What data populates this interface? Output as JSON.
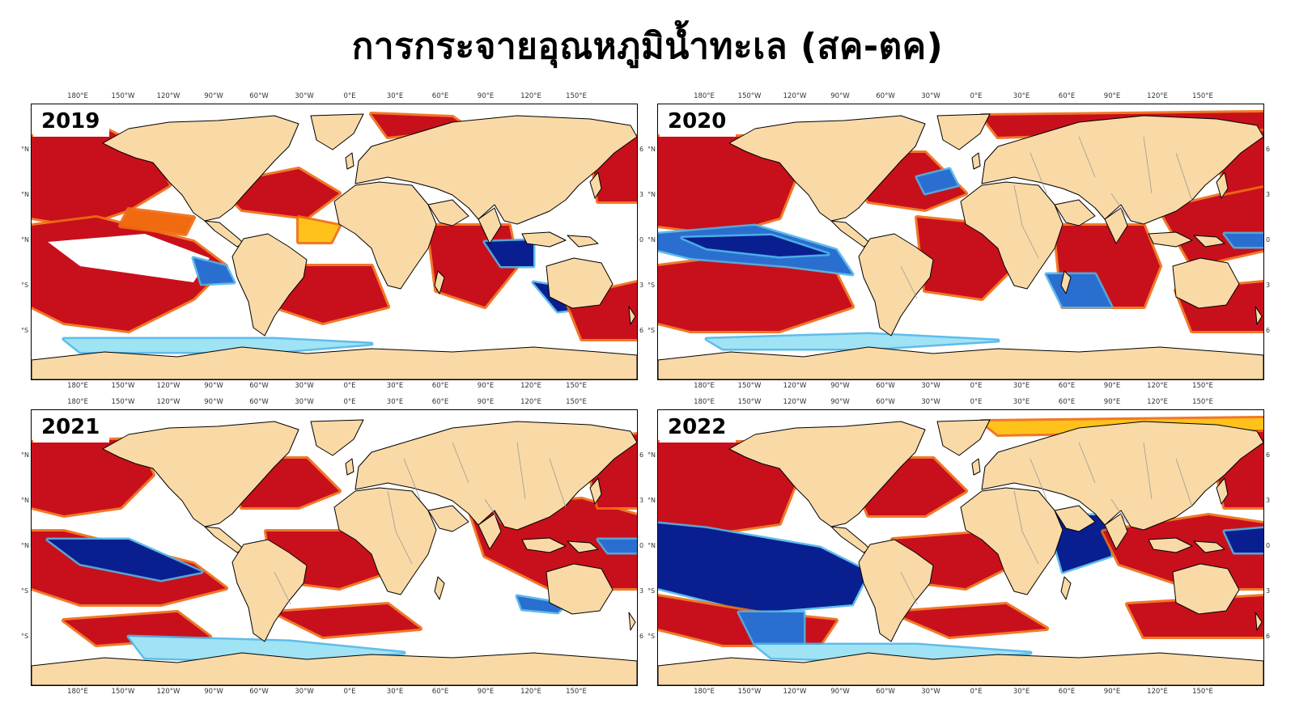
{
  "title": "การกระจายอุณหภูมิน้ำทะเล (สค-ตค)",
  "lon_labels": [
    "180°E",
    "150°W",
    "120°W",
    "90°W",
    "60°W",
    "30°W",
    "0°E",
    "30°E",
    "60°E",
    "90°E",
    "120°E",
    "150°E"
  ],
  "lat_labels_left": [
    "°N",
    "°N",
    "°N",
    "°S",
    "°S"
  ],
  "lat_labels_right": [
    "6",
    "3",
    "0",
    "3",
    "6"
  ],
  "colors": {
    "land": "#F9D9A6",
    "coast": "#000000",
    "border": "#9a9a9a",
    "warm_strong": "#C8101C",
    "warm_mid": "#F06A10",
    "warm_light": "#FFC21A",
    "warm_pale": "#FFF27A",
    "neutral": "#FFFFFF",
    "cool_pale": "#9FE3F5",
    "cool_light": "#4FB5E8",
    "cool_mid": "#2A6FD0",
    "cool_strong": "#0A1F8F"
  },
  "panels": [
    {
      "year": "2019"
    },
    {
      "year": "2020"
    },
    {
      "year": "2021"
    },
    {
      "year": "2022"
    }
  ]
}
